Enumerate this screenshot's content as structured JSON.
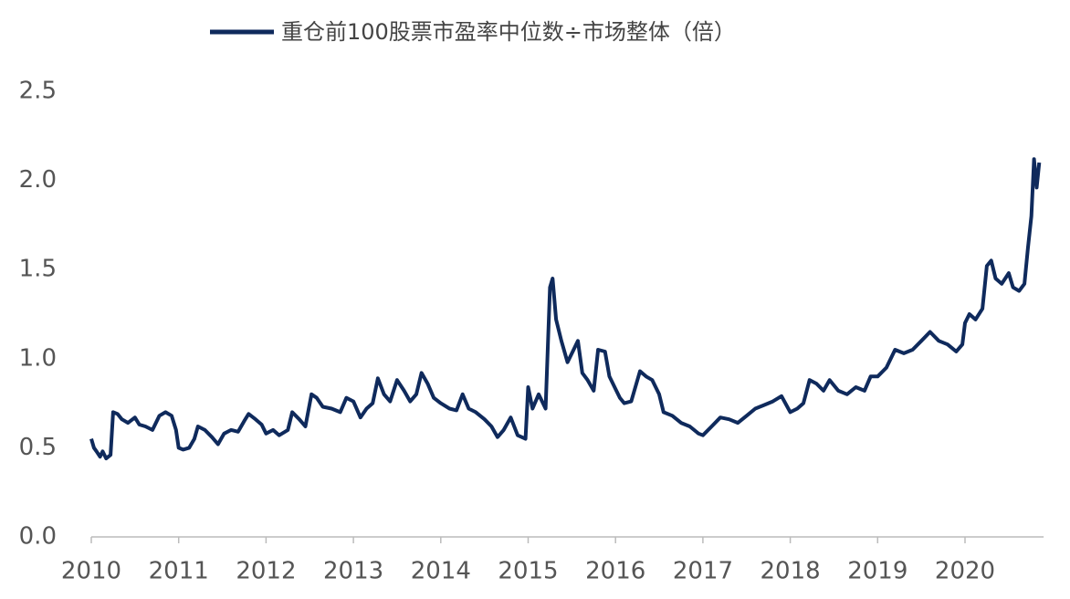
{
  "chart_data": {
    "type": "line",
    "series": [
      {
        "name": "重仓前100股票市盈率中位数÷市场整体（倍）",
        "color": "#0f2a5c",
        "x": [
          2010.0,
          2010.03,
          2010.06,
          2010.1,
          2010.13,
          2010.17,
          2010.22,
          2010.25,
          2010.3,
          2010.35,
          2010.42,
          2010.5,
          2010.55,
          2010.62,
          2010.7,
          2010.78,
          2010.85,
          2010.92,
          2010.97,
          2011.0,
          2011.05,
          2011.12,
          2011.18,
          2011.22,
          2011.3,
          2011.38,
          2011.45,
          2011.52,
          2011.6,
          2011.68,
          2011.75,
          2011.8,
          2011.88,
          2011.95,
          2012.0,
          2012.08,
          2012.15,
          2012.25,
          2012.3,
          2012.38,
          2012.45,
          2012.52,
          2012.58,
          2012.65,
          2012.75,
          2012.85,
          2012.92,
          2013.0,
          2013.08,
          2013.15,
          2013.22,
          2013.28,
          2013.35,
          2013.42,
          2013.5,
          2013.58,
          2013.65,
          2013.72,
          2013.78,
          2013.85,
          2013.92,
          2014.0,
          2014.1,
          2014.18,
          2014.25,
          2014.32,
          2014.4,
          2014.5,
          2014.58,
          2014.65,
          2014.72,
          2014.8,
          2014.88,
          2014.97,
          2015.0,
          2015.05,
          2015.12,
          2015.2,
          2015.25,
          2015.28,
          2015.32,
          2015.38,
          2015.45,
          2015.52,
          2015.57,
          2015.62,
          2015.68,
          2015.75,
          2015.8,
          2015.88,
          2015.93,
          2016.0,
          2016.05,
          2016.1,
          2016.18,
          2016.28,
          2016.35,
          2016.42,
          2016.5,
          2016.55,
          2016.65,
          2016.75,
          2016.85,
          2016.95,
          2017.0,
          2017.1,
          2017.2,
          2017.3,
          2017.4,
          2017.5,
          2017.6,
          2017.7,
          2017.8,
          2017.9,
          2018.0,
          2018.08,
          2018.15,
          2018.22,
          2018.3,
          2018.38,
          2018.45,
          2018.55,
          2018.65,
          2018.75,
          2018.85,
          2018.92,
          2019.0,
          2019.1,
          2019.2,
          2019.3,
          2019.4,
          2019.5,
          2019.6,
          2019.7,
          2019.8,
          2019.9,
          2019.97,
          2020.0,
          2020.05,
          2020.12,
          2020.2,
          2020.25,
          2020.3,
          2020.35,
          2020.42,
          2020.5,
          2020.55,
          2020.62,
          2020.68,
          2020.72,
          2020.76,
          2020.79,
          2020.82,
          2020.85
        ],
        "values": [
          0.55,
          0.5,
          0.48,
          0.45,
          0.48,
          0.44,
          0.46,
          0.7,
          0.69,
          0.66,
          0.64,
          0.67,
          0.63,
          0.62,
          0.6,
          0.68,
          0.7,
          0.68,
          0.6,
          0.5,
          0.49,
          0.5,
          0.55,
          0.62,
          0.6,
          0.56,
          0.52,
          0.58,
          0.6,
          0.59,
          0.65,
          0.69,
          0.66,
          0.63,
          0.58,
          0.6,
          0.57,
          0.6,
          0.7,
          0.66,
          0.62,
          0.8,
          0.78,
          0.73,
          0.72,
          0.7,
          0.78,
          0.76,
          0.67,
          0.72,
          0.75,
          0.89,
          0.8,
          0.76,
          0.88,
          0.82,
          0.76,
          0.8,
          0.92,
          0.86,
          0.78,
          0.75,
          0.72,
          0.71,
          0.8,
          0.72,
          0.7,
          0.66,
          0.62,
          0.56,
          0.6,
          0.67,
          0.57,
          0.55,
          0.84,
          0.72,
          0.8,
          0.72,
          1.4,
          1.45,
          1.22,
          1.1,
          0.98,
          1.05,
          1.1,
          0.92,
          0.88,
          0.82,
          1.05,
          1.04,
          0.9,
          0.83,
          0.78,
          0.75,
          0.76,
          0.93,
          0.9,
          0.88,
          0.8,
          0.7,
          0.68,
          0.64,
          0.62,
          0.58,
          0.57,
          0.62,
          0.67,
          0.66,
          0.64,
          0.68,
          0.72,
          0.74,
          0.76,
          0.79,
          0.7,
          0.72,
          0.75,
          0.88,
          0.86,
          0.82,
          0.88,
          0.82,
          0.8,
          0.84,
          0.82,
          0.9,
          0.9,
          0.95,
          1.05,
          1.03,
          1.05,
          1.1,
          1.15,
          1.1,
          1.08,
          1.04,
          1.08,
          1.2,
          1.25,
          1.22,
          1.28,
          1.52,
          1.55,
          1.45,
          1.42,
          1.48,
          1.4,
          1.38,
          1.42,
          1.62,
          1.8,
          2.12,
          1.96,
          2.1
        ]
      }
    ],
    "xlim": [
      2010,
      2020.9
    ],
    "xticks": [
      2010,
      2011,
      2012,
      2013,
      2014,
      2015,
      2016,
      2017,
      2018,
      2019,
      2020
    ],
    "ylim": [
      0,
      2.5
    ],
    "yticks": [
      {
        "value": 0,
        "label": "0.0"
      },
      0.5,
      {
        "value": 1,
        "label": "1.0"
      },
      1.5,
      {
        "value": 2,
        "label": "2.0"
      },
      2.5
    ],
    "grid": false,
    "legend": "top"
  }
}
